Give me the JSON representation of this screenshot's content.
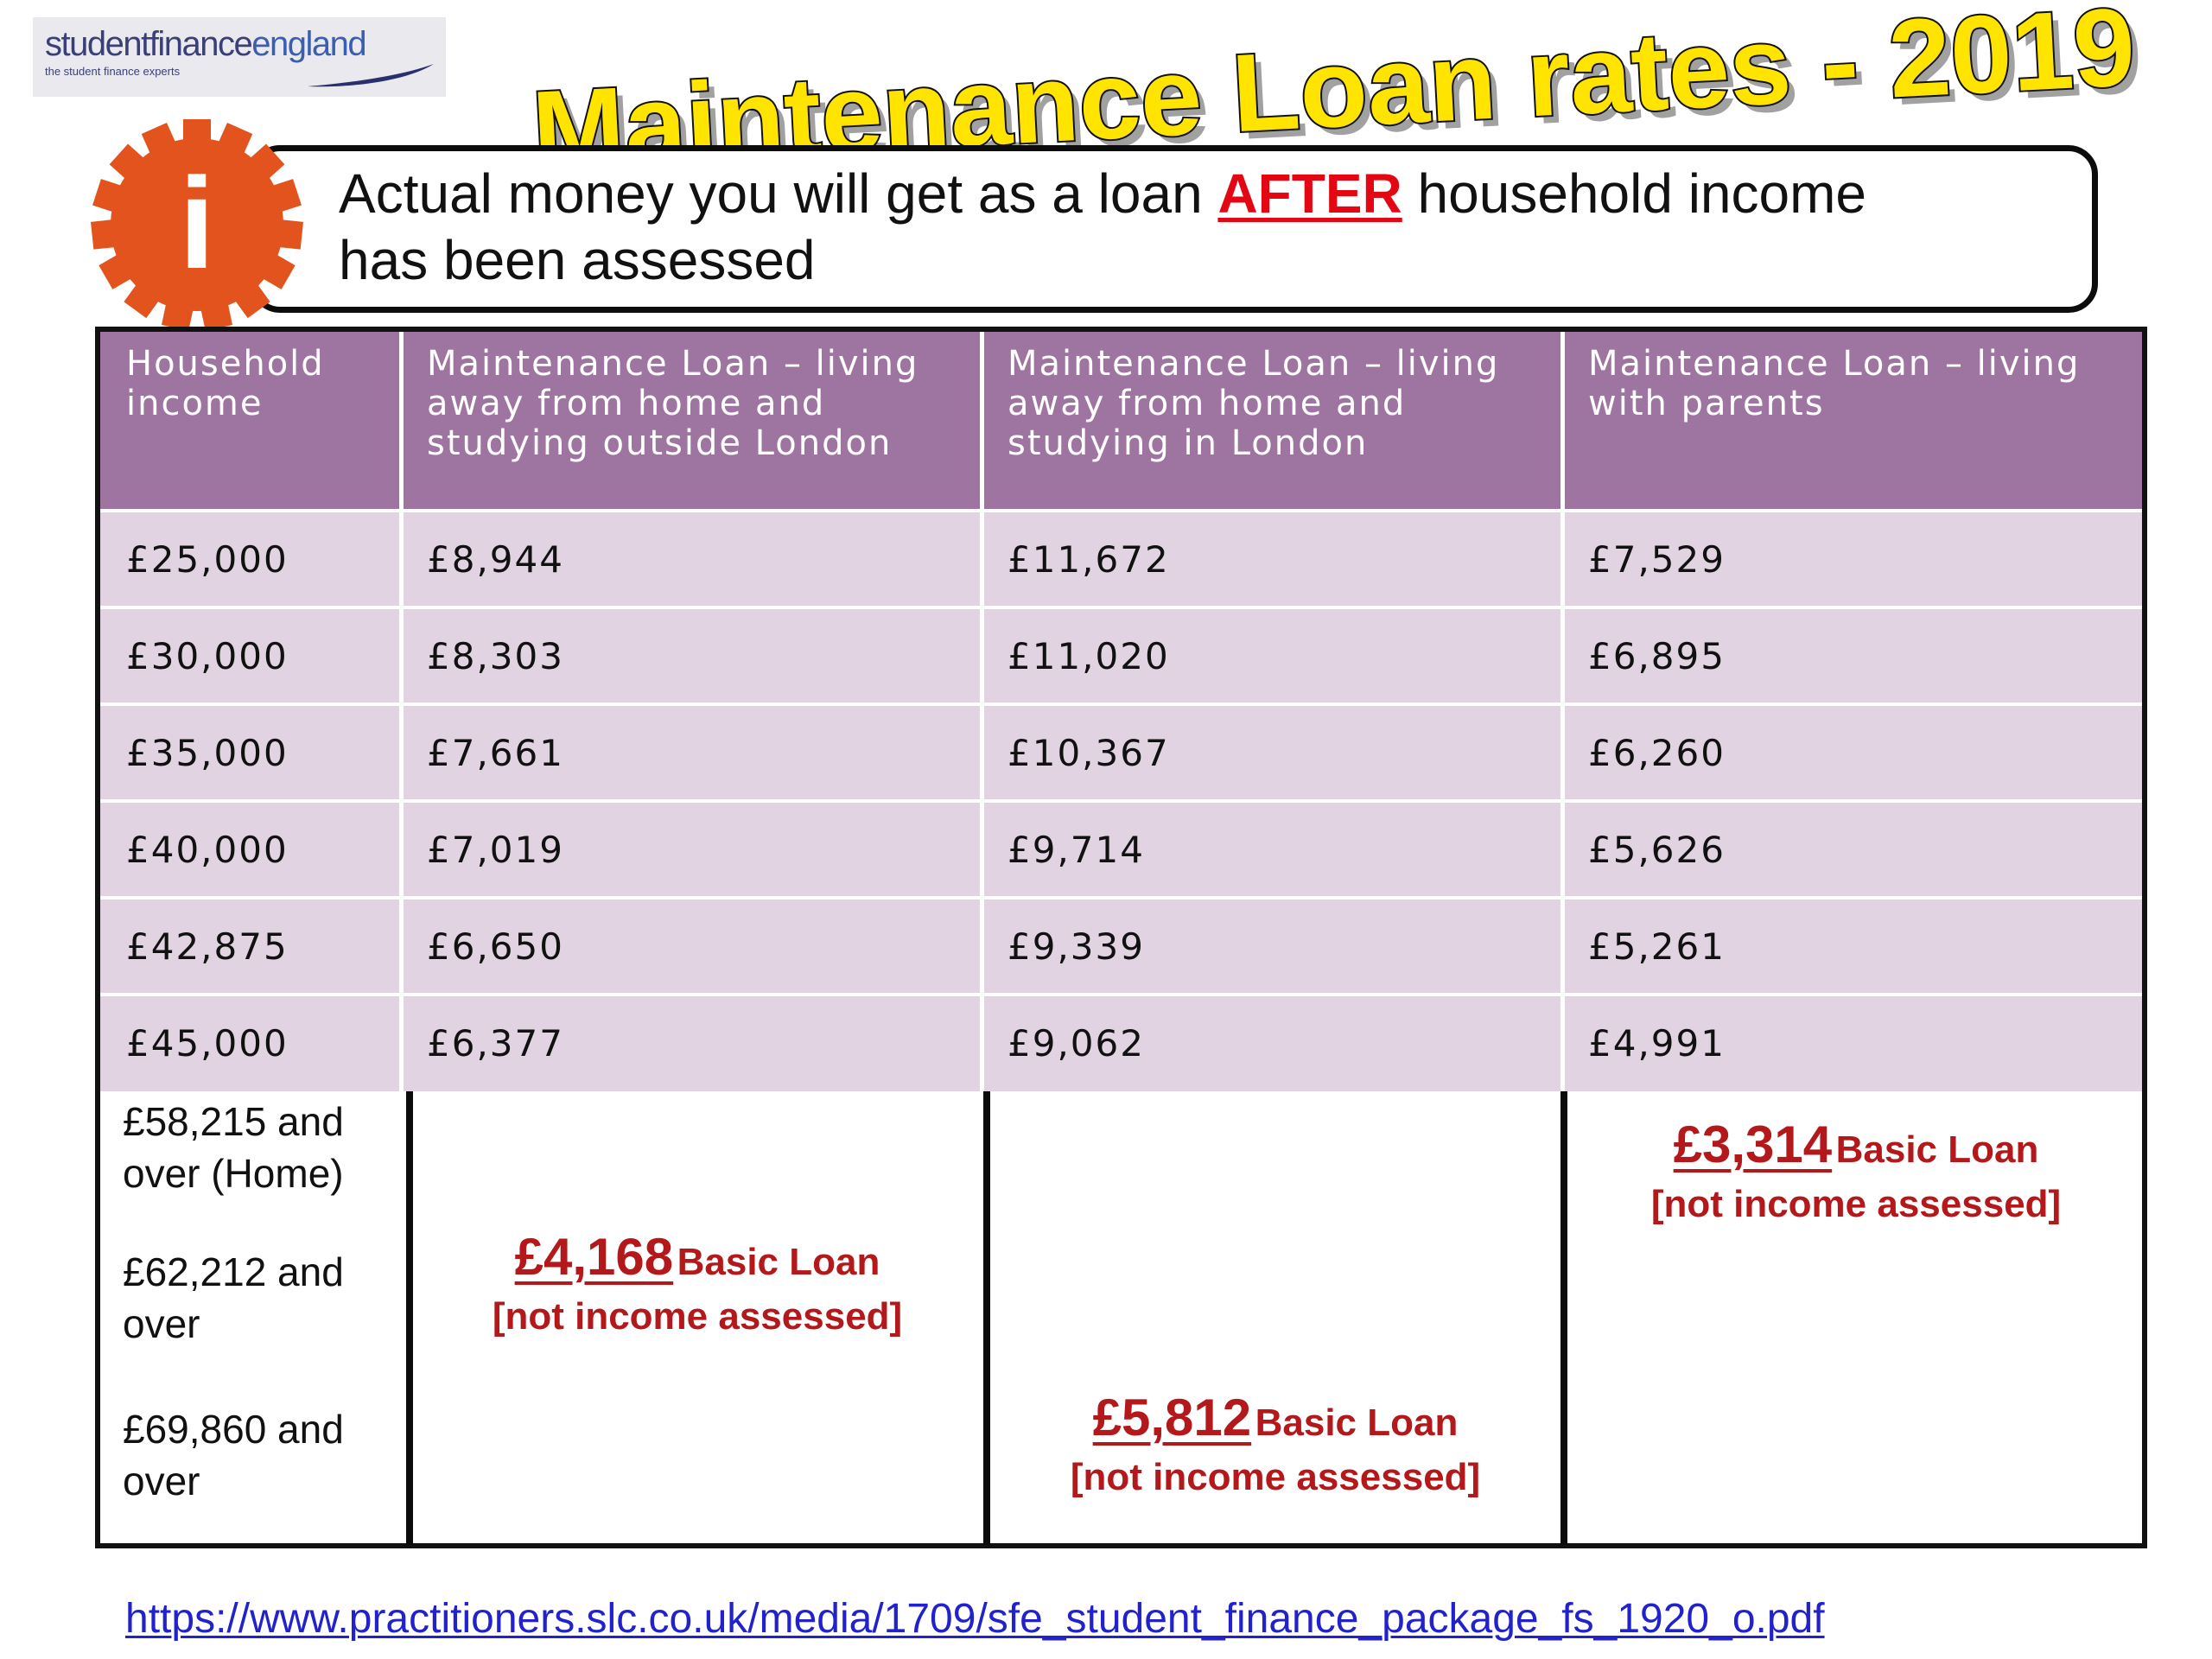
{
  "logo": {
    "name_part1": "studentfinance",
    "name_part2": "england",
    "tagline": "the student finance experts"
  },
  "title": "Maintenance Loan rates - 2019",
  "info": {
    "line_before": "Actual money you will get as a loan",
    "emphasis": "AFTER",
    "line_after": "household income",
    "line2": "has been assessed",
    "icon_letter": "i"
  },
  "table": {
    "headers": [
      "Household income",
      "Maintenance Loan – living away from home and studying outside London",
      "Maintenance Loan – living away from home and studying in London",
      "Maintenance Loan – living with parents"
    ],
    "rows": [
      [
        "£25,000",
        "£8,944",
        "£11,672",
        "£7,529"
      ],
      [
        "£30,000",
        "£8,303",
        "£11,020",
        "£6,895"
      ],
      [
        "£35,000",
        "£7,661",
        "£10,367",
        "£6,260"
      ],
      [
        "£40,000",
        "£7,019",
        "£9,714",
        "£5,626"
      ],
      [
        "£42,875",
        "£6,650",
        "£9,339",
        "£5,261"
      ],
      [
        "£45,000",
        "£6,377",
        "£9,062",
        "£4,991"
      ]
    ],
    "thresholds": [
      {
        "l1": "£58,215 and",
        "l2": "over (Home)"
      },
      {
        "l1": "£62,212 and",
        "l2": "over"
      },
      {
        "l1": "£69,860 and",
        "l2": "over"
      }
    ],
    "basic_loans": {
      "outside_london": {
        "amount": "£4,168",
        "label": "Basic Loan",
        "note": "[not income assessed]"
      },
      "in_london": {
        "amount": "£5,812",
        "label": "Basic Loan",
        "note": "[not income assessed]"
      },
      "with_parents": {
        "amount": "£3,314",
        "label": "Basic Loan",
        "note": "[not income assessed]"
      }
    }
  },
  "source_link": "https://www.practitioners.slc.co.uk/media/1709/sfe_student_finance_package_fs_1920_o.pdf",
  "colors": {
    "header_purple": "#9e75a0",
    "row_lilac": "#e1d3e2",
    "title_yellow": "#ffe400",
    "alert_red": "#e30613",
    "basic_loan_red": "#b3181b",
    "gear_orange": "#e2531d",
    "link_blue": "#2222cc"
  }
}
